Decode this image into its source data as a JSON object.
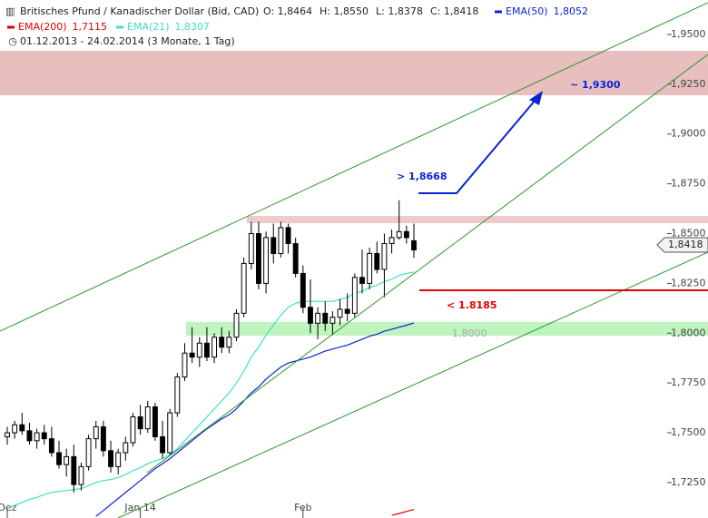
{
  "chart_data": {
    "type": "candlestick",
    "title": "Britisches Pfund / Kanadischer Dollar (Bid, CAD)",
    "ohlc_labels": [
      "O: 1,8464",
      "H: 1,8550",
      "L: 1,8378",
      "C: 1,8418"
    ],
    "period": "01.12.2013 - 24.02.2014 (3 Monate, 1 Tag)",
    "last_price_label": "1,8418",
    "categories": [
      "Dez",
      null,
      null,
      null,
      null,
      null,
      null,
      null,
      null,
      null,
      null,
      null,
      null,
      null,
      null,
      null,
      null,
      null,
      "Jan 14",
      null,
      null,
      null,
      null,
      null,
      null,
      null,
      null,
      null,
      null,
      null,
      null,
      null,
      null,
      null,
      null,
      null,
      null,
      null,
      null,
      null,
      "Feb",
      null,
      null,
      null,
      null,
      null,
      null,
      null,
      null,
      null,
      null,
      null,
      null,
      null,
      null,
      null
    ],
    "open": [
      1.748,
      1.75,
      1.754,
      1.751,
      1.746,
      1.75,
      1.747,
      1.74,
      1.734,
      1.738,
      1.724,
      1.733,
      1.747,
      1.753,
      1.741,
      1.733,
      1.74,
      1.745,
      1.758,
      1.752,
      1.763,
      1.748,
      1.74,
      1.76,
      1.778,
      1.79,
      1.788,
      1.795,
      1.788,
      1.798,
      1.793,
      1.798,
      1.81,
      1.835,
      1.85,
      1.825,
      1.848,
      1.84,
      1.853,
      1.845,
      1.83,
      1.813,
      1.805,
      1.81,
      1.805,
      1.808,
      1.812,
      1.81,
      1.828,
      1.825,
      1.84,
      1.832,
      1.845,
      1.848,
      1.851,
      1.8464
    ],
    "high": [
      1.753,
      1.756,
      1.76,
      1.755,
      1.752,
      1.754,
      1.753,
      1.746,
      1.742,
      1.744,
      1.735,
      1.749,
      1.756,
      1.756,
      1.746,
      1.742,
      1.748,
      1.76,
      1.764,
      1.766,
      1.765,
      1.756,
      1.762,
      1.78,
      1.795,
      1.803,
      1.798,
      1.803,
      1.8,
      1.803,
      1.801,
      1.812,
      1.838,
      1.856,
      1.856,
      1.851,
      1.855,
      1.856,
      1.855,
      1.848,
      1.834,
      1.827,
      1.813,
      1.816,
      1.811,
      1.817,
      1.82,
      1.83,
      1.842,
      1.843,
      1.846,
      1.85,
      1.852,
      1.8668,
      1.854,
      1.855
    ],
    "low": [
      1.744,
      1.747,
      1.749,
      1.744,
      1.742,
      1.744,
      1.738,
      1.732,
      1.728,
      1.72,
      1.721,
      1.731,
      1.742,
      1.738,
      1.73,
      1.729,
      1.736,
      1.743,
      1.749,
      1.75,
      1.746,
      1.737,
      1.739,
      1.758,
      1.776,
      1.785,
      1.783,
      1.786,
      1.785,
      1.79,
      1.79,
      1.796,
      1.808,
      1.832,
      1.822,
      1.82,
      1.835,
      1.838,
      1.84,
      1.828,
      1.81,
      1.8,
      1.797,
      1.801,
      1.799,
      1.804,
      1.806,
      1.808,
      1.82,
      1.822,
      1.83,
      1.818,
      1.84,
      1.847,
      1.845,
      1.8378
    ],
    "close": [
      1.75,
      1.754,
      1.751,
      1.746,
      1.75,
      1.747,
      1.74,
      1.734,
      1.738,
      1.724,
      1.733,
      1.747,
      1.753,
      1.741,
      1.733,
      1.74,
      1.745,
      1.758,
      1.752,
      1.763,
      1.748,
      1.74,
      1.76,
      1.778,
      1.79,
      1.788,
      1.795,
      1.788,
      1.798,
      1.793,
      1.798,
      1.81,
      1.835,
      1.85,
      1.825,
      1.848,
      1.84,
      1.853,
      1.845,
      1.83,
      1.813,
      1.805,
      1.81,
      1.805,
      1.808,
      1.812,
      1.81,
      1.828,
      1.825,
      1.84,
      1.832,
      1.845,
      1.848,
      1.851,
      1.848,
      1.8418
    ],
    "candle_color": "#000000",
    "series": [
      {
        "name": "EMA(50)",
        "color": "#0a24d8",
        "last_label": "1,8052",
        "values": [
          null,
          null,
          null,
          null,
          null,
          null,
          null,
          null,
          null,
          null,
          null,
          null,
          1.708,
          1.711,
          1.714,
          1.717,
          1.72,
          1.723,
          1.726,
          1.729,
          1.732,
          1.7345,
          1.737,
          1.74,
          1.743,
          1.746,
          1.749,
          1.752,
          1.7545,
          1.757,
          1.759,
          1.762,
          1.766,
          1.77,
          1.773,
          1.777,
          1.78,
          1.783,
          1.785,
          1.786,
          1.787,
          1.788,
          1.7895,
          1.791,
          1.792,
          1.793,
          1.794,
          1.7955,
          1.797,
          1.7985,
          1.7995,
          1.801,
          1.802,
          1.803,
          1.804,
          1.8052
        ]
      },
      {
        "name": "EMA(200)",
        "color": "#e00000",
        "last_label": "1,7115",
        "values": [
          null,
          null,
          null,
          null,
          null,
          null,
          null,
          null,
          null,
          null,
          null,
          null,
          null,
          null,
          null,
          null,
          null,
          null,
          null,
          null,
          null,
          null,
          null,
          null,
          null,
          null,
          null,
          null,
          null,
          null,
          null,
          null,
          null,
          null,
          null,
          null,
          null,
          null,
          null,
          null,
          null,
          null,
          null,
          null,
          null,
          null,
          null,
          null,
          null,
          null,
          null,
          null,
          1.7085,
          1.7095,
          1.7105,
          1.7115
        ]
      },
      {
        "name": "EMA(21)",
        "color": "#40e0c8",
        "last_label": "1,8307",
        "values": [
          1.712,
          1.7135,
          1.715,
          1.7165,
          1.7175,
          1.719,
          1.72,
          1.7205,
          1.721,
          1.7215,
          1.722,
          1.7235,
          1.725,
          1.726,
          1.7265,
          1.7275,
          1.729,
          1.731,
          1.7325,
          1.7345,
          1.736,
          1.737,
          1.739,
          1.742,
          1.746,
          1.75,
          1.754,
          1.758,
          1.762,
          1.766,
          1.77,
          1.775,
          1.781,
          1.788,
          1.793,
          1.799,
          1.804,
          1.809,
          1.813,
          1.815,
          1.816,
          1.816,
          1.816,
          1.816,
          1.816,
          1.817,
          1.818,
          1.82,
          1.821,
          1.823,
          1.824,
          1.826,
          1.827,
          1.829,
          1.83,
          1.8307
        ]
      }
    ],
    "ylim": [
      1.7072,
      1.9673
    ],
    "yticks": [
      {
        "value": 1.95,
        "label": "1,9500"
      },
      {
        "value": 1.925,
        "label": "1,9250"
      },
      {
        "value": 1.9,
        "label": "1,9000"
      },
      {
        "value": 1.875,
        "label": "1,8750"
      },
      {
        "value": 1.85,
        "label": "1,8500"
      },
      {
        "value": 1.825,
        "label": "1,8250"
      },
      {
        "value": 1.8,
        "label": "1,8000"
      },
      {
        "value": 1.775,
        "label": "1,7750"
      },
      {
        "value": 1.75,
        "label": "1,7500"
      },
      {
        "value": 1.725,
        "label": "1,7250"
      }
    ],
    "annotations": [
      "~ 1,9300",
      "> 1,8668",
      "< 1.8185",
      "1,8000"
    ]
  }
}
